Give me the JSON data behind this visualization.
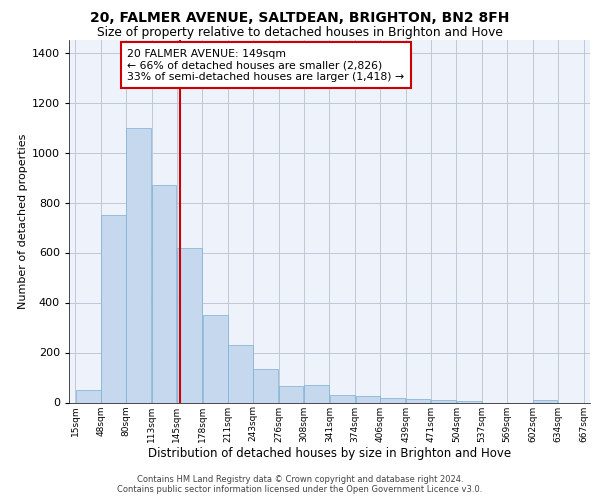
{
  "title1": "20, FALMER AVENUE, SALTDEAN, BRIGHTON, BN2 8FH",
  "title2": "Size of property relative to detached houses in Brighton and Hove",
  "xlabel": "Distribution of detached houses by size in Brighton and Hove",
  "ylabel": "Number of detached properties",
  "footer1": "Contains HM Land Registry data © Crown copyright and database right 2024.",
  "footer2": "Contains public sector information licensed under the Open Government Licence v3.0.",
  "ann1": "20 FALMER AVENUE: 149sqm",
  "ann2": "← 66% of detached houses are smaller (2,826)",
  "ann3": "33% of semi-detached houses are larger (1,418) →",
  "property_size": 149,
  "bin_edges": [
    15,
    48,
    80,
    113,
    145,
    178,
    211,
    243,
    276,
    308,
    341,
    374,
    406,
    439,
    471,
    504,
    537,
    569,
    602,
    634,
    667
  ],
  "bar_heights": [
    50,
    750,
    1100,
    870,
    620,
    350,
    230,
    135,
    65,
    70,
    30,
    25,
    20,
    15,
    10,
    5,
    0,
    0,
    12,
    0
  ],
  "bar_color": "#c5d8ee",
  "bar_edge_color": "#7aafd4",
  "vline_color": "#cc0000",
  "bg_color": "#edf2fb",
  "grid_color": "#c0c8d8",
  "ylim_max": 1450,
  "tick_labels": [
    "15sqm",
    "48sqm",
    "80sqm",
    "113sqm",
    "145sqm",
    "178sqm",
    "211sqm",
    "243sqm",
    "276sqm",
    "308sqm",
    "341sqm",
    "374sqm",
    "406sqm",
    "439sqm",
    "471sqm",
    "504sqm",
    "537sqm",
    "569sqm",
    "602sqm",
    "634sqm",
    "667sqm"
  ]
}
